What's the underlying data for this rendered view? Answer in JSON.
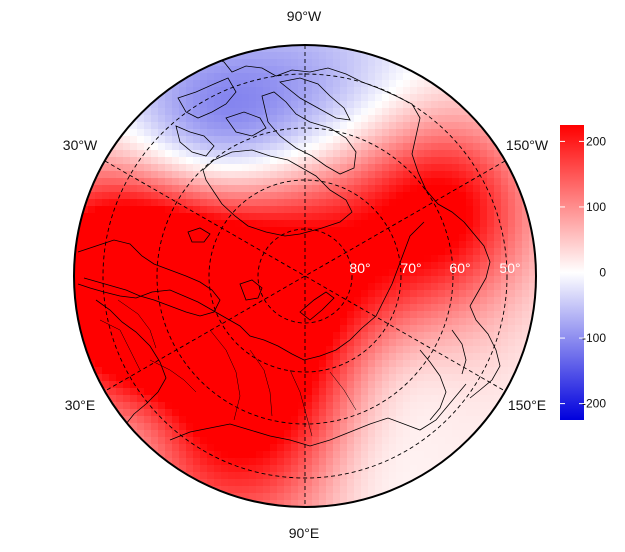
{
  "map": {
    "projection": "north-polar-stereographic",
    "field_colorscale": {
      "min": -225,
      "max": 225,
      "low_color": "#0000dd",
      "mid_color": "#ffffff",
      "high_color": "#ff0000"
    },
    "longitude_labels": [
      "90°W",
      "30°W",
      "150°W",
      "30°E",
      "150°E",
      "90°E"
    ],
    "latitude_labels": [
      "80°",
      "70°",
      "60°",
      "50°"
    ],
    "graticule": {
      "style": "dashed",
      "color": "#000000"
    },
    "field_description": "Smooth anomaly field over the Arctic: strong positive maximum near the pole extending across northern Eurasia, negative minimum over Greenland / Canadian Arctic, weak negative patches near Kamchatka and the southern rim."
  },
  "colorbar": {
    "ticks": [
      200,
      100,
      0,
      -100,
      -200
    ],
    "tick_labels": [
      "200",
      "100",
      "0",
      "-100",
      "-200"
    ],
    "range": [
      -225,
      225
    ]
  }
}
